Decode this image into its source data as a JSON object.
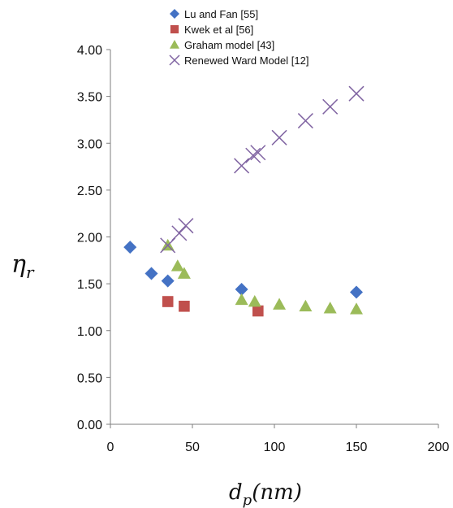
{
  "chart_data": {
    "type": "scatter",
    "title": "",
    "xlabel": "d_p(nm)",
    "xlabel_main": "d",
    "xlabel_sub": "p",
    "xlabel_unit": "(nm)",
    "ylabel": "η_r",
    "ylabel_main": "η",
    "ylabel_sub": "r",
    "xlim": [
      0,
      200
    ],
    "ylim": [
      0,
      4
    ],
    "x_ticks": [
      "0",
      "50",
      "100",
      "150",
      "200"
    ],
    "y_ticks": [
      "0.00",
      "0.50",
      "1.00",
      "1.50",
      "2.00",
      "2.50",
      "3.00",
      "3.50",
      "4.00"
    ],
    "grid": false,
    "legend_position": "top",
    "series": [
      {
        "name": "Lu and Fan [55]",
        "marker": "diamond",
        "color": "#4472C4",
        "points": [
          [
            12,
            1.89
          ],
          [
            25,
            1.61
          ],
          [
            35,
            1.53
          ],
          [
            80,
            1.44
          ],
          [
            150,
            1.41
          ]
        ]
      },
      {
        "name": "Kwek et al [56]",
        "marker": "square",
        "color": "#C0504D",
        "points": [
          [
            35,
            1.31
          ],
          [
            45,
            1.26
          ],
          [
            90,
            1.21
          ]
        ]
      },
      {
        "name": "Graham model [43]",
        "marker": "triangle",
        "color": "#9BBB59",
        "points": [
          [
            35,
            1.91
          ],
          [
            41,
            1.69
          ],
          [
            45,
            1.61
          ],
          [
            80,
            1.33
          ],
          [
            88,
            1.31
          ],
          [
            103,
            1.28
          ],
          [
            119,
            1.26
          ],
          [
            134,
            1.24
          ],
          [
            150,
            1.23
          ]
        ]
      },
      {
        "name": "Renewed Ward Model [12]",
        "marker": "x",
        "color": "#8064A2",
        "points": [
          [
            35,
            1.91
          ],
          [
            42,
            2.04
          ],
          [
            46,
            2.12
          ],
          [
            80,
            2.76
          ],
          [
            87,
            2.87
          ],
          [
            90,
            2.9
          ],
          [
            103,
            3.06
          ],
          [
            119,
            3.24
          ],
          [
            134,
            3.39
          ],
          [
            150,
            3.53
          ]
        ]
      }
    ]
  }
}
